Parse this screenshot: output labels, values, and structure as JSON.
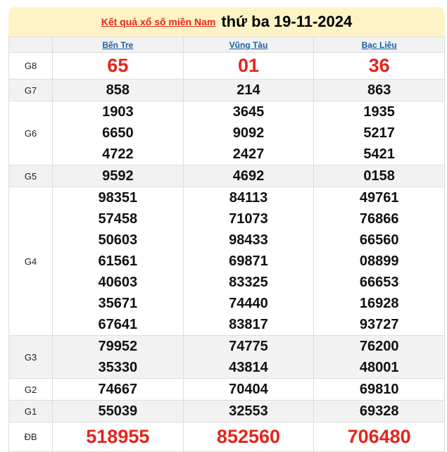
{
  "header": {
    "link": "Kết quả xổ số miền Nam",
    "date": "thứ ba 19-11-2024"
  },
  "provinces": [
    "Bến Tre",
    "Vũng Tàu",
    "Bạc Liêu"
  ],
  "rows": [
    {
      "label": "G8",
      "values": [
        [
          "65"
        ],
        [
          "01"
        ],
        [
          "36"
        ]
      ]
    },
    {
      "label": "G7",
      "values": [
        [
          "858"
        ],
        [
          "214"
        ],
        [
          "863"
        ]
      ]
    },
    {
      "label": "G6",
      "values": [
        [
          "1903",
          "6650",
          "4722"
        ],
        [
          "3645",
          "9092",
          "2427"
        ],
        [
          "1935",
          "5217",
          "5421"
        ]
      ]
    },
    {
      "label": "G5",
      "values": [
        [
          "9592"
        ],
        [
          "4692"
        ],
        [
          "0158"
        ]
      ]
    },
    {
      "label": "G4",
      "values": [
        [
          "98351",
          "57458",
          "50603",
          "61561",
          "40603",
          "35671",
          "67641"
        ],
        [
          "84113",
          "71073",
          "98433",
          "69871",
          "83325",
          "74440",
          "83817"
        ],
        [
          "49761",
          "76866",
          "66560",
          "08899",
          "66653",
          "16928",
          "93727"
        ]
      ]
    },
    {
      "label": "G3",
      "values": [
        [
          "79952",
          "35330"
        ],
        [
          "74775",
          "43814"
        ],
        [
          "76200",
          "48001"
        ]
      ]
    },
    {
      "label": "G2",
      "values": [
        [
          "74667"
        ],
        [
          "70404"
        ],
        [
          "69810"
        ]
      ]
    },
    {
      "label": "G1",
      "values": [
        [
          "55039"
        ],
        [
          "32553"
        ],
        [
          "69328"
        ]
      ]
    },
    {
      "label": "ĐB",
      "values": [
        [
          "518955"
        ],
        [
          "852560"
        ],
        [
          "706480"
        ]
      ]
    }
  ],
  "colors": {
    "accent": "#e3261b",
    "link": "#1a5ea8",
    "header_bg": "#fdf3c6"
  }
}
